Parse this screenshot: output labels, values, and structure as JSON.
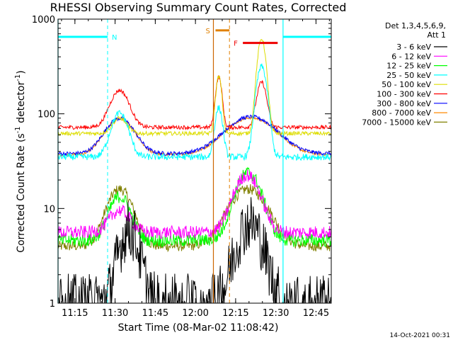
{
  "chart_data": {
    "type": "line",
    "title": "RHESSI Observing Summary Count Rates, Corrected",
    "xlabel": "Start Time (08-Mar-02 11:08:42)",
    "ylabel": "Corrected Count Rate (s",
    "ylabel_sup1": "-1",
    "ylabel_mid": " detector",
    "ylabel_sup2": "-1",
    "ylabel_end": ")",
    "yscale": "log",
    "ylim": [
      1,
      1000
    ],
    "xlim_minutes": [
      0,
      102
    ],
    "xticks": [
      {
        "t": 6.3,
        "label": "11:15"
      },
      {
        "t": 21.3,
        "label": "11:30"
      },
      {
        "t": 36.3,
        "label": "11:45"
      },
      {
        "t": 51.3,
        "label": "12:00"
      },
      {
        "t": 66.3,
        "label": "12:15"
      },
      {
        "t": 81.3,
        "label": "12:30"
      },
      {
        "t": 96.3,
        "label": "12:45"
      }
    ],
    "yticks": [
      {
        "v": 1,
        "label": "1"
      },
      {
        "v": 10,
        "label": "10"
      },
      {
        "v": 100,
        "label": "100"
      },
      {
        "v": 1000,
        "label": "1000"
      }
    ],
    "legend_header": [
      "Det 1,3,4,5,6,9,",
      "Att 1"
    ],
    "legend_position": "right",
    "series": [
      {
        "name": "3 - 6 keV",
        "color": "#000000",
        "base": 1.0,
        "peaks": [
          [
            26.5,
            6.0,
            4.5
          ],
          [
            71.5,
            7.0,
            6
          ]
        ],
        "noise": 0.45
      },
      {
        "name": "6 - 12 keV",
        "color": "#ff00ff",
        "base": 5.6,
        "peaks": [
          [
            23.0,
            1.7,
            5
          ],
          [
            70.5,
            4.0,
            6
          ]
        ],
        "noise": 0.1
      },
      {
        "name": "12 - 25 keV",
        "color": "#00ff00",
        "base": 4.6,
        "peaks": [
          [
            23.0,
            2.9,
            5
          ],
          [
            71.0,
            5.2,
            6
          ]
        ],
        "noise": 0.1
      },
      {
        "name": "25 - 50 keV",
        "color": "#00ffff",
        "base": 35,
        "peaks": [
          [
            23.0,
            2.9,
            4
          ],
          [
            60.0,
            3.3,
            1.8
          ],
          [
            76.0,
            9.0,
            2.5
          ]
        ],
        "noise": 0.05
      },
      {
        "name": "50 - 100 keV",
        "color": "#dddd00",
        "base": 62,
        "peaks": [
          [
            23.0,
            1.45,
            3.5
          ],
          [
            60.0,
            4.0,
            1.4
          ],
          [
            76.0,
            10.0,
            2.0
          ]
        ],
        "noise": 0.03
      },
      {
        "name": "100 - 300 keV",
        "color": "#ff0000",
        "base": 72,
        "peaks": [
          [
            23.0,
            2.45,
            4.5
          ],
          [
            60.0,
            3.4,
            1.5
          ],
          [
            76.0,
            3.0,
            2.3
          ]
        ],
        "noise": 0.03
      },
      {
        "name": "300 - 800 keV",
        "color": "#0000ff",
        "base": 38,
        "peaks": [
          [
            23.0,
            2.35,
            7
          ],
          [
            72.0,
            2.45,
            12
          ]
        ],
        "noise": 0.03
      },
      {
        "name": "800 - 7000 keV",
        "color": "#ff8800",
        "base": 37,
        "peaks": [
          [
            23.0,
            2.4,
            7
          ],
          [
            72.0,
            2.45,
            12
          ]
        ],
        "noise": 0.02
      },
      {
        "name": "7000 - 15000 keV",
        "color": "#808000",
        "base": 4.0,
        "peaks": [
          [
            23.0,
            4.0,
            6
          ],
          [
            71.0,
            4.0,
            9
          ]
        ],
        "noise": 0.08
      }
    ],
    "annotations": {
      "night": {
        "label": "N",
        "color": "#00ffff",
        "bars": [
          [
            0,
            18.5
          ],
          [
            84,
            102
          ]
        ],
        "level": 650
      },
      "saa": {
        "label": "S",
        "color": "#e08000",
        "range": [
          58,
          64
        ],
        "level": 760
      },
      "flare": {
        "label": "F",
        "color": "#ee0000",
        "range": [
          69,
          82
        ],
        "level": 560
      },
      "solid_lines": [
        {
          "t": 0,
          "color": "#00ffff"
        },
        {
          "t": 58,
          "color": "#cc6600"
        },
        {
          "t": 84,
          "color": "#00ffff"
        }
      ],
      "dashed_lines": [
        {
          "t": 18.5,
          "color": "#00ffff"
        },
        {
          "t": 64,
          "color": "#e08000"
        },
        {
          "t": 102,
          "color": "#00ffff"
        }
      ]
    },
    "footer_date": "14-Oct-2021 00:31"
  }
}
